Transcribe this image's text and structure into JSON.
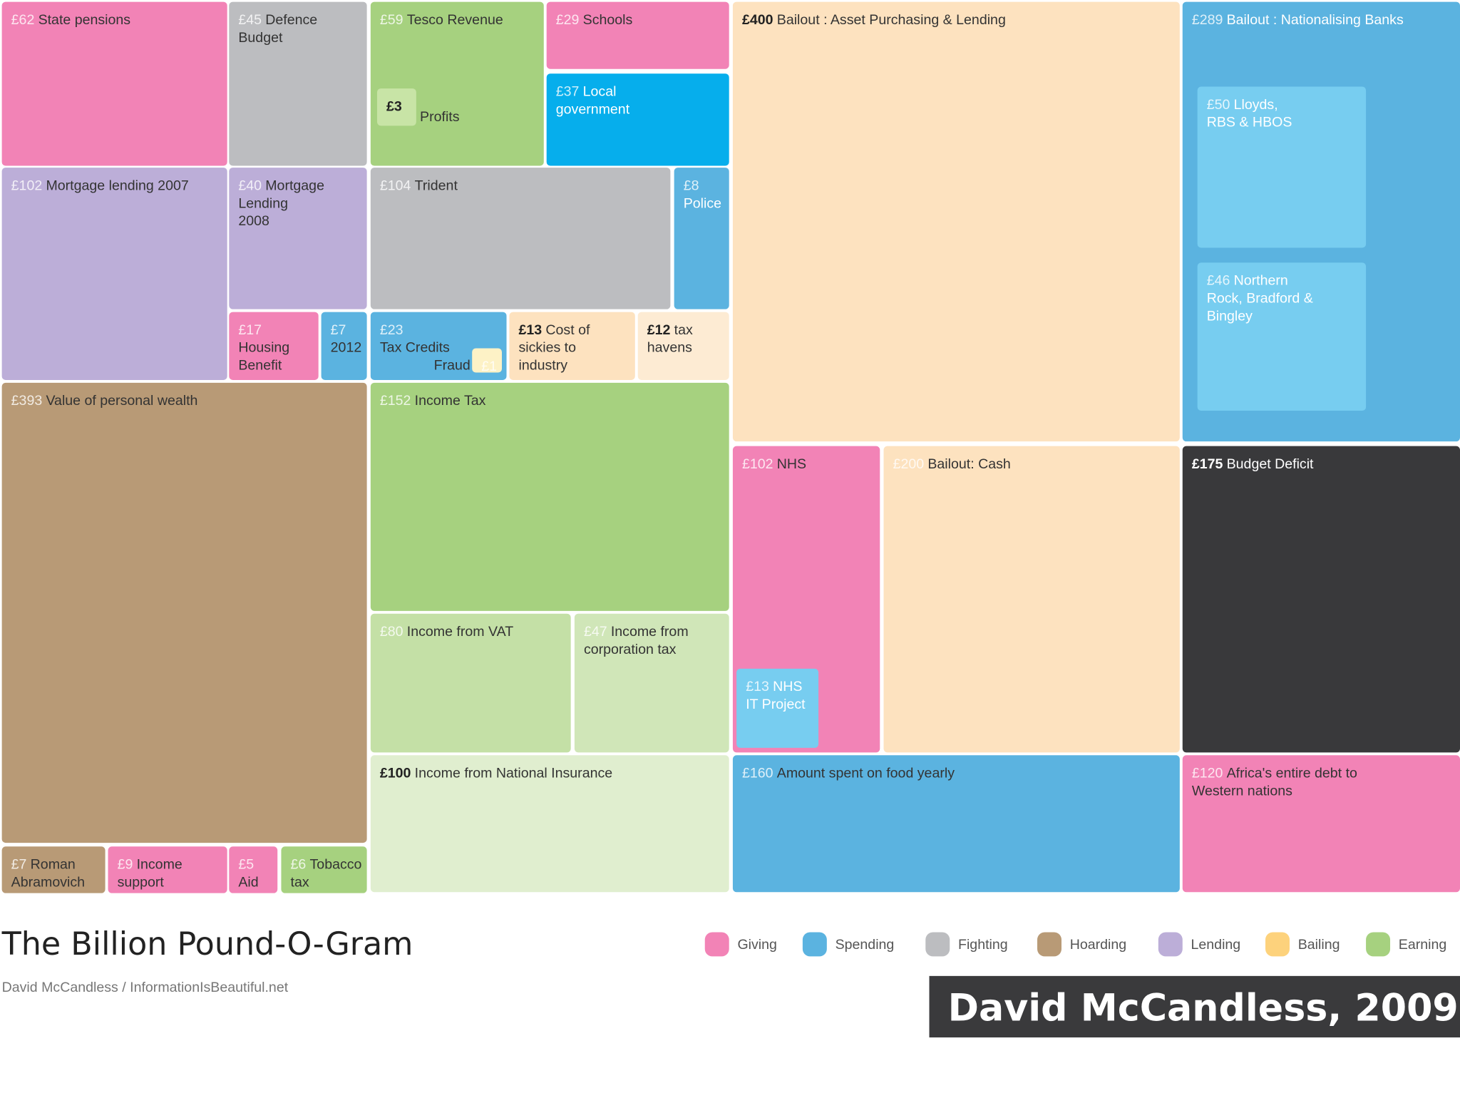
{
  "title": "The Billion Pound-O-Gram",
  "byline": "David McCandless / InformationIsBeautiful.net",
  "credit": "David McCandless, 2009",
  "legend": [
    "Giving",
    "Spending",
    "Fighting",
    "Hoarding",
    "Lending",
    "Bailing",
    "Earning"
  ],
  "blocks": [
    {
      "amount": "£62",
      "label": [
        "State pensions"
      ]
    },
    {
      "amount": "£45",
      "label": [
        "Defence",
        "Budget"
      ]
    },
    {
      "amount": "£59",
      "label": [
        "Tesco Revenue"
      ],
      "children": [
        {
          "amount": "£3",
          "label": [
            "Profits"
          ]
        }
      ]
    },
    {
      "amount": "£29",
      "label": [
        "Schools"
      ]
    },
    {
      "amount": "£37",
      "label": [
        "Local",
        "government"
      ]
    },
    {
      "amount": "£400",
      "label": [
        "Bailout : Asset Purchasing & Lending"
      ]
    },
    {
      "amount": "£289",
      "label": [
        "Bailout : Nationalising Banks"
      ],
      "children": [
        {
          "amount": "£50",
          "label": [
            "Lloyds,",
            "RBS & HBOS"
          ]
        },
        {
          "amount": "£46",
          "label": [
            "Northern",
            "Rock, Bradford &",
            "Bingley"
          ]
        }
      ]
    },
    {
      "amount": "£102",
      "label": [
        "Mortgage lending 2007"
      ]
    },
    {
      "amount": "£40",
      "label": [
        "Mortgage",
        "Lending",
        "2008"
      ]
    },
    {
      "amount": "£104",
      "label": [
        "Trident"
      ]
    },
    {
      "amount": "£8",
      "label": [
        "",
        "Police"
      ]
    },
    {
      "amount": "£17",
      "label": [
        "",
        "Housing",
        "Benefit"
      ]
    },
    {
      "amount": "£7",
      "label": [
        "",
        "2012"
      ]
    },
    {
      "amount": "£23",
      "label": [
        "",
        "Tax Credits",
        "Fraud"
      ],
      "children": [
        {
          "amount": "£1",
          "label": []
        }
      ]
    },
    {
      "amount": "£13",
      "label": [
        "Cost of",
        "sickies to",
        "industry"
      ]
    },
    {
      "amount": "£12",
      "label": [
        "tax",
        "havens"
      ]
    },
    {
      "amount": "£393",
      "label": [
        "Value of personal wealth"
      ]
    },
    {
      "amount": "£152",
      "label": [
        "Income Tax"
      ]
    },
    {
      "amount": "£80",
      "label": [
        "Income from VAT"
      ]
    },
    {
      "amount": "£47",
      "label": [
        "Income from",
        "corporation tax"
      ]
    },
    {
      "amount": "£100",
      "label": [
        "Income from National Insurance"
      ]
    },
    {
      "amount": "£102",
      "label": [
        "NHS"
      ],
      "children": [
        {
          "amount": "£13",
          "label": [
            "NHS",
            "IT Project"
          ]
        }
      ]
    },
    {
      "amount": "£200",
      "label": [
        "Bailout: Cash"
      ]
    },
    {
      "amount": "£175",
      "label": [
        "Budget Deficit"
      ]
    },
    {
      "amount": "£160",
      "label": [
        "Amount spent on food yearly"
      ]
    },
    {
      "amount": "£120",
      "label": [
        "Africa's entire debt to",
        "Western nations"
      ]
    },
    {
      "amount": "£7",
      "label": [
        "Roman",
        "Abramovich"
      ]
    },
    {
      "amount": "£9",
      "label": [
        "Income",
        "support"
      ]
    },
    {
      "amount": "£5",
      "label": [
        "",
        "Aid"
      ]
    },
    {
      "amount": "£6",
      "label": [
        "Tobacco",
        "tax"
      ]
    }
  ]
}
